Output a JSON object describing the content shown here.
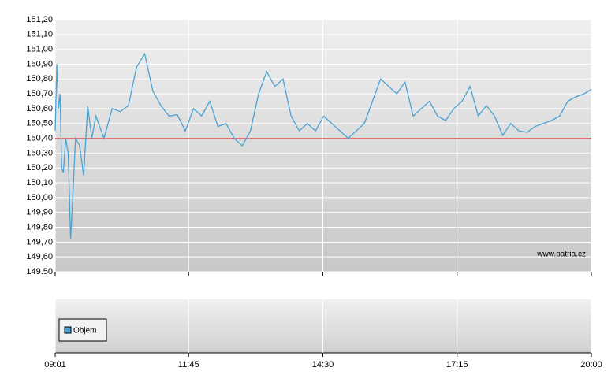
{
  "chart_data": {
    "type": "line",
    "x": [
      "09:01",
      "09:03",
      "09:05",
      "09:07",
      "09:09",
      "09:11",
      "09:14",
      "09:17",
      "09:20",
      "09:23",
      "09:26",
      "09:31",
      "09:36",
      "09:41",
      "09:46",
      "09:51",
      "10:01",
      "10:11",
      "10:21",
      "10:31",
      "10:41",
      "10:51",
      "11:01",
      "11:11",
      "11:21",
      "11:31",
      "11:41",
      "11:51",
      "12:01",
      "12:11",
      "12:21",
      "12:31",
      "12:41",
      "12:51",
      "13:01",
      "13:11",
      "13:21",
      "13:31",
      "13:41",
      "13:51",
      "14:01",
      "14:11",
      "14:21",
      "14:31",
      "14:41",
      "14:51",
      "15:01",
      "15:11",
      "15:21",
      "15:31",
      "15:41",
      "15:51",
      "16:01",
      "16:11",
      "16:21",
      "16:31",
      "16:41",
      "16:51",
      "17:01",
      "17:11",
      "17:21",
      "17:31",
      "17:41",
      "17:51",
      "18:01",
      "18:11",
      "18:21",
      "18:31",
      "18:41",
      "18:51",
      "19:01",
      "19:11",
      "19:21",
      "19:31",
      "19:41",
      "19:51",
      "20:00"
    ],
    "series": [
      {
        "color": "#4aa3d3",
        "values": [
          150.45,
          150.9,
          150.6,
          150.7,
          150.2,
          150.17,
          150.4,
          150.3,
          149.72,
          150.05,
          150.4,
          150.35,
          150.15,
          150.62,
          150.4,
          150.55,
          150.4,
          150.6,
          150.58,
          150.62,
          150.88,
          150.97,
          150.72,
          150.62,
          150.55,
          150.56,
          150.45,
          150.6,
          150.55,
          150.65,
          150.48,
          150.5,
          150.4,
          150.35,
          150.45,
          150.7,
          150.85,
          150.75,
          150.8,
          150.55,
          150.45,
          150.5,
          150.45,
          150.55,
          150.5,
          150.45,
          150.4,
          150.45,
          150.5,
          150.65,
          150.8,
          150.75,
          150.7,
          150.78,
          150.55,
          150.6,
          150.65,
          150.55,
          150.52,
          150.6,
          150.65,
          150.75,
          150.55,
          150.62,
          150.55,
          150.42,
          150.5,
          150.45,
          150.44,
          150.48,
          150.5,
          150.52,
          150.55,
          150.65,
          150.68,
          150.7,
          150.73
        ]
      }
    ],
    "reference_line": {
      "value": 150.4,
      "color": "#e05a5a"
    },
    "xlim": [
      "09:01",
      "20:00"
    ],
    "xticks": [
      "09:01",
      "11:45",
      "14:30",
      "17:15",
      "20:00"
    ],
    "ylim": [
      149.5,
      151.2
    ],
    "yticks": [
      {
        "value": 149.5,
        "label": "149.50"
      },
      {
        "value": 149.6,
        "label": "149,60"
      },
      {
        "value": 149.7,
        "label": "149,70"
      },
      {
        "value": 149.8,
        "label": "149,80"
      },
      {
        "value": 149.9,
        "label": "149,90"
      },
      {
        "value": 150.0,
        "label": "150,00"
      },
      {
        "value": 150.1,
        "label": "150,10"
      },
      {
        "value": 150.2,
        "label": "150,20"
      },
      {
        "value": 150.3,
        "label": "150,30"
      },
      {
        "value": 150.4,
        "label": "150,40"
      },
      {
        "value": 150.5,
        "label": "150,50"
      },
      {
        "value": 150.6,
        "label": "150,60"
      },
      {
        "value": 150.7,
        "label": "150,70"
      },
      {
        "value": 150.8,
        "label": "150,80"
      },
      {
        "value": 150.9,
        "label": "150,90"
      },
      {
        "value": 151.0,
        "label": "151,00"
      },
      {
        "value": 151.1,
        "label": "151,10"
      },
      {
        "value": 151.2,
        "label": "151,20"
      }
    ],
    "grid": true,
    "watermark": "www.patria.cz",
    "volume": {
      "name": "Objem",
      "color": "#4aa3d3"
    }
  }
}
